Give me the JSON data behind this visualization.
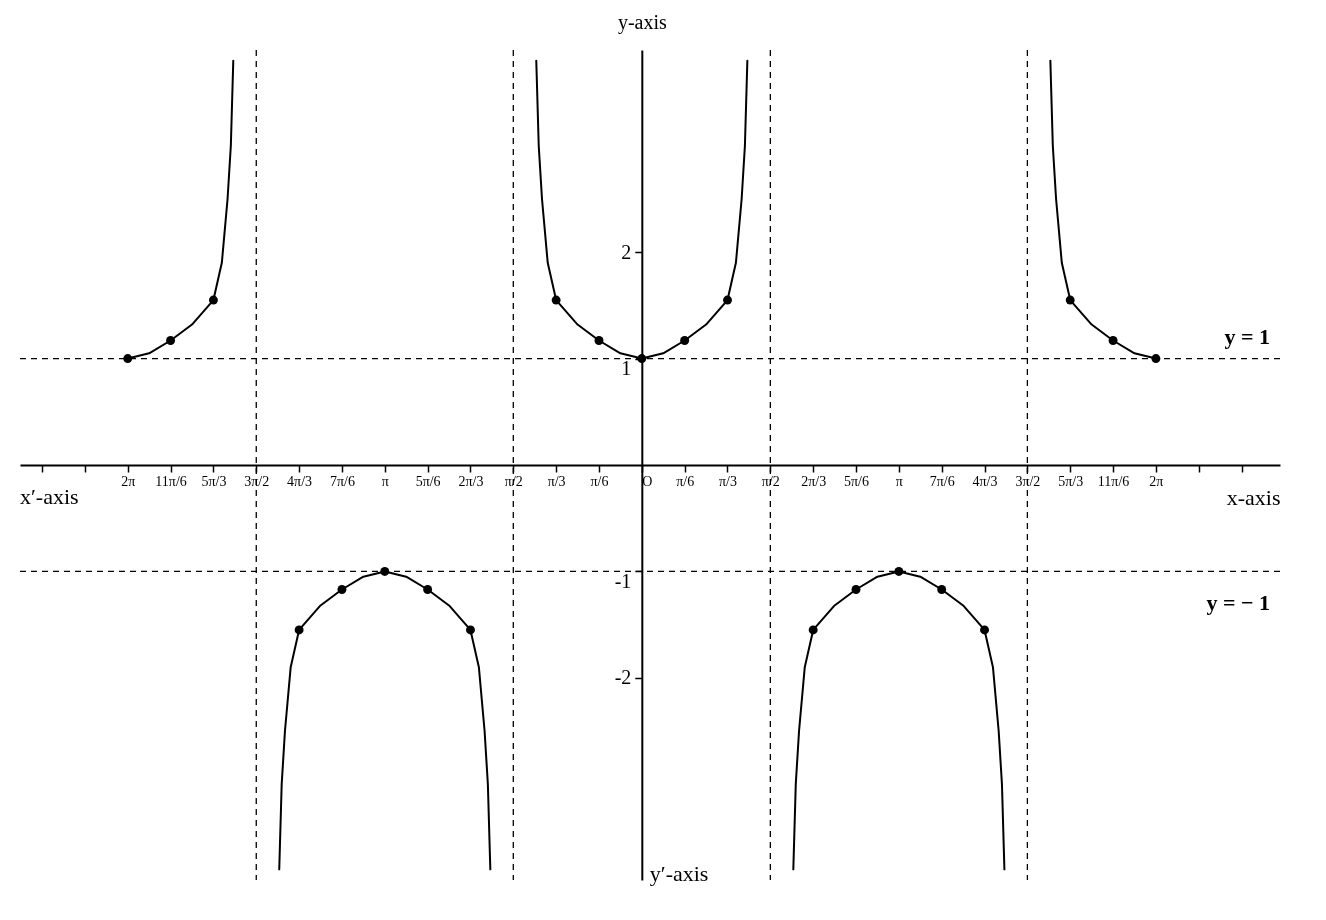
{
  "chart_data": {
    "type": "line",
    "xlabel": "x-axis",
    "ylabel": "y-axis",
    "annotations": [
      "x′-axis",
      "y′-axis"
    ],
    "xlim": [
      -7.6,
      7.8
    ],
    "ylim": [
      -3.9,
      3.9
    ],
    "xticks": [
      {
        "value": -7.3304,
        "label": null
      },
      {
        "value": -6.8068,
        "label": null
      },
      {
        "value": -6.2832,
        "label": "2π"
      },
      {
        "value": -5.7596,
        "label": "11π/6"
      },
      {
        "value": -5.236,
        "label": "5π/3"
      },
      {
        "value": -4.7124,
        "label": "3π/2"
      },
      {
        "value": -4.1888,
        "label": "4π/3"
      },
      {
        "value": -3.6652,
        "label": "7π/6"
      },
      {
        "value": -3.1416,
        "label": "π"
      },
      {
        "value": -2.618,
        "label": "5π/6"
      },
      {
        "value": -2.0944,
        "label": "2π/3"
      },
      {
        "value": -1.5708,
        "label": "π/2"
      },
      {
        "value": -1.0472,
        "label": "π/3"
      },
      {
        "value": -0.5236,
        "label": "π/6"
      },
      {
        "value": 0,
        "label": "O"
      },
      {
        "value": 0.5236,
        "label": "π/6"
      },
      {
        "value": 1.0472,
        "label": "π/3"
      },
      {
        "value": 1.5708,
        "label": "π/2"
      },
      {
        "value": 2.0944,
        "label": "2π/3"
      },
      {
        "value": 2.618,
        "label": "5π/6"
      },
      {
        "value": 3.1416,
        "label": "π"
      },
      {
        "value": 3.6652,
        "label": "7π/6"
      },
      {
        "value": 4.1888,
        "label": "4π/3"
      },
      {
        "value": 4.7124,
        "label": "3π/2"
      },
      {
        "value": 5.236,
        "label": "5π/3"
      },
      {
        "value": 5.7596,
        "label": "11π/6"
      },
      {
        "value": 6.2832,
        "label": "2π"
      },
      {
        "value": 6.8068,
        "label": null
      },
      {
        "value": 7.3304,
        "label": null
      }
    ],
    "yticks": [
      -2,
      -1,
      1,
      2
    ],
    "grid": false,
    "ref_lines": [
      {
        "axis": "y",
        "value": 1,
        "label": "y = 1",
        "line_style": "dashed",
        "color": "#000000"
      },
      {
        "axis": "y",
        "value": -1,
        "label": "y = − 1",
        "line_style": "dashed",
        "color": "#000000"
      },
      {
        "axis": "x",
        "value": -4.7124,
        "line_style": "dashed",
        "color": "#000000"
      },
      {
        "axis": "x",
        "value": -1.5708,
        "line_style": "dashed",
        "color": "#000000"
      },
      {
        "axis": "x",
        "value": 1.5708,
        "line_style": "dashed",
        "color": "#000000"
      },
      {
        "axis": "x",
        "value": 4.7124,
        "line_style": "dashed",
        "color": "#000000"
      }
    ],
    "series": [
      {
        "type": "line",
        "color": "#000000",
        "marker": "none",
        "line_style": "solid",
        "x": [
          -6.2832,
          -6.0214,
          -5.7596,
          -5.4978,
          -5.236,
          -5.1332,
          -5.0632,
          -5.0232,
          -4.9932,
          -4.7124,
          -4.4316,
          -4.4016,
          -4.3616,
          -4.2916,
          -4.1888,
          -3.927,
          -3.6652,
          -3.4034,
          -3.1416,
          -2.8798,
          -2.618,
          -2.3562,
          -2.0944,
          -1.9916,
          -1.9216,
          -1.8816,
          -1.8516,
          -1.5708,
          -1.29,
          -1.26,
          -1.22,
          -1.15,
          -1.0472,
          -0.7854,
          -0.5236,
          -0.2618,
          0,
          0.2618,
          0.5236,
          0.7854,
          1.0472,
          1.15,
          1.22,
          1.26,
          1.29,
          1.5708,
          1.8516,
          1.8816,
          1.9216,
          1.9916,
          2.0944,
          2.3562,
          2.618,
          2.8798,
          3.1416,
          3.4034,
          3.6652,
          3.927,
          4.1888,
          4.2916,
          4.3616,
          4.4016,
          4.4316,
          4.7124,
          4.9932,
          5.0232,
          5.0632,
          5.1332,
          5.236,
          5.4978,
          5.7596,
          6.0214,
          6.2832
        ],
        "values": [
          1,
          1.05,
          1.17,
          1.32,
          1.55,
          1.9,
          2.5,
          3.0,
          3.8,
          null,
          -3.8,
          -3.0,
          -2.5,
          -1.9,
          -1.55,
          -1.32,
          -1.17,
          -1.05,
          -1,
          -1.05,
          -1.17,
          -1.32,
          -1.55,
          -1.9,
          -2.5,
          -3.0,
          -3.8,
          null,
          3.8,
          3.0,
          2.5,
          1.9,
          1.55,
          1.32,
          1.17,
          1.05,
          1,
          1.05,
          1.17,
          1.32,
          1.55,
          1.9,
          2.5,
          3.0,
          3.8,
          null,
          -3.8,
          -3.0,
          -2.5,
          -1.9,
          -1.55,
          -1.32,
          -1.17,
          -1.05,
          -1,
          -1.05,
          -1.17,
          -1.32,
          -1.55,
          -1.9,
          -2.5,
          -3.0,
          -3.8,
          null,
          3.8,
          3.0,
          2.5,
          1.9,
          1.55,
          1.32,
          1.17,
          1.05,
          1
        ]
      },
      {
        "type": "scatter",
        "color": "#000000",
        "marker": "circle",
        "x": [
          -6.2832,
          -5.7596,
          -5.236,
          -4.1888,
          -3.6652,
          -3.1416,
          -2.618,
          -2.0944,
          -1.0472,
          -0.5236,
          0,
          0.5236,
          1.0472,
          2.0944,
          2.618,
          3.1416,
          3.6652,
          4.1888,
          5.236,
          5.7596,
          6.2832
        ],
        "values": [
          1,
          1.17,
          1.55,
          -1.55,
          -1.17,
          -1,
          -1.17,
          -1.55,
          1.55,
          1.17,
          1,
          1.17,
          1.55,
          -1.55,
          -1.17,
          -1,
          -1.17,
          -1.55,
          1.55,
          1.17,
          1
        ]
      }
    ]
  }
}
